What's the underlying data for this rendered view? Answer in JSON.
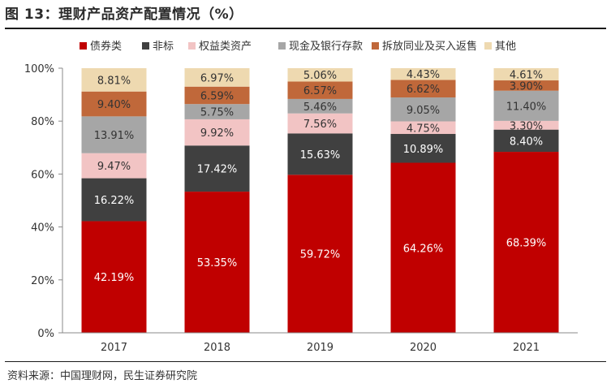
{
  "figure": {
    "title": "图 13：理财产品资产配置情况（%）",
    "source": "资料来源：中国理财网，民生证券研究院"
  },
  "chart_data": {
    "type": "bar",
    "stacked": true,
    "categories": [
      "2017",
      "2018",
      "2019",
      "2020",
      "2021"
    ],
    "series": [
      {
        "name": "债券类",
        "color": "#c00000",
        "label_color": "#ffffff",
        "values": [
          42.19,
          53.35,
          59.72,
          64.26,
          68.39
        ]
      },
      {
        "name": "非标",
        "color": "#404040",
        "label_color": "#ffffff",
        "values": [
          16.22,
          17.42,
          15.63,
          10.89,
          8.4
        ]
      },
      {
        "name": "权益类资产",
        "color": "#f2c4c4",
        "label_color": "#333333",
        "values": [
          9.47,
          9.92,
          7.56,
          4.75,
          3.3
        ]
      },
      {
        "name": "现金及银行存款",
        "color": "#a6a6a6",
        "label_color": "#333333",
        "values": [
          13.91,
          5.75,
          5.46,
          9.05,
          11.4
        ]
      },
      {
        "name": "拆放同业及买入返售",
        "color": "#c0683a",
        "label_color": "#333333",
        "values": [
          9.4,
          6.59,
          6.57,
          6.62,
          3.9
        ]
      },
      {
        "name": "其他",
        "color": "#eed9b0",
        "label_color": "#333333",
        "values": [
          8.81,
          6.97,
          5.06,
          4.43,
          4.61
        ]
      }
    ],
    "data_labels": [
      [
        "42.19%",
        "53.35%",
        "59.72%",
        "64.26%",
        "68.39%"
      ],
      [
        "16.22%",
        "17.42%",
        "15.63%",
        "10.89%",
        "8.40%"
      ],
      [
        "9.47%",
        "9.92%",
        "7.56%",
        "4.75%",
        "3.30%"
      ],
      [
        "13.91%",
        "5.75%",
        "5.46%",
        "9.05%",
        "11.40%"
      ],
      [
        "9.40%",
        "6.59%",
        "6.57%",
        "6.62%",
        "3.90%"
      ],
      [
        "8.81%",
        "6.97%",
        "5.06%",
        "4.43%",
        "4.61%"
      ]
    ],
    "y_ticks": [
      0,
      20,
      40,
      60,
      80,
      100
    ],
    "y_tick_labels": [
      "0%",
      "20%",
      "40%",
      "60%",
      "80%",
      "100%"
    ],
    "ylim": [
      0,
      100
    ],
    "grid": false,
    "legend_position": "top"
  }
}
